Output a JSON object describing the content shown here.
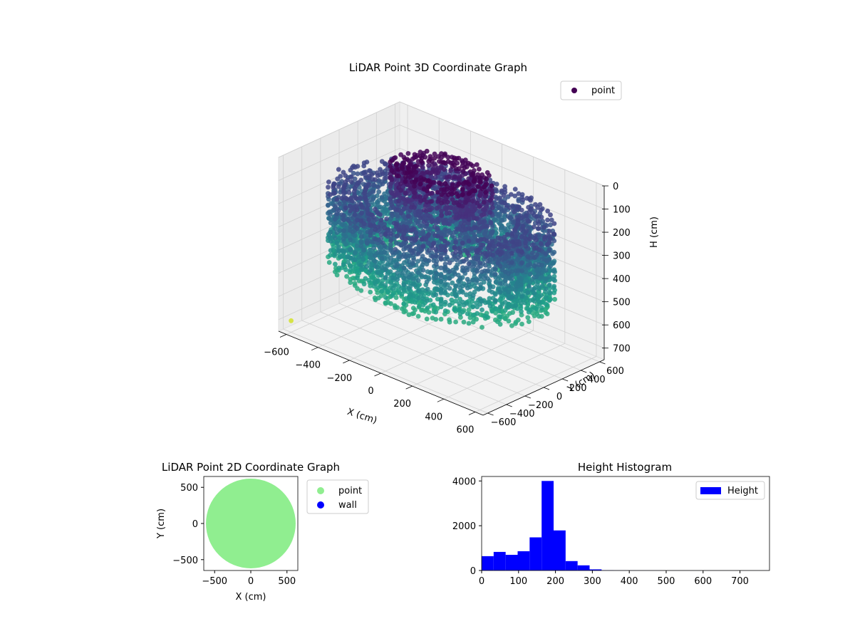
{
  "chart_data": [
    {
      "type": "scatter3d",
      "title": "LiDAR Point 3D Coordinate Graph",
      "xlabel": "X (cm)",
      "ylabel": "Y (cm)",
      "zlabel": "H (cm)",
      "xlim": [
        -650,
        650
      ],
      "ylim": [
        -650,
        650
      ],
      "zlim": [
        750,
        0
      ],
      "x_ticks": [
        -600,
        -400,
        -200,
        0,
        200,
        400,
        600
      ],
      "y_ticks": [
        -600,
        -400,
        -200,
        0,
        200,
        400,
        600
      ],
      "z_ticks": [
        0,
        100,
        200,
        300,
        400,
        500,
        600,
        700
      ],
      "colormap": "viridis",
      "legend": {
        "entries": [
          "point"
        ],
        "color": "#440154",
        "placement": "top-right"
      },
      "structure": {
        "rings": [
          {
            "radius_range": [
              420,
              620
            ],
            "height_range": [
              150,
              450
            ]
          },
          {
            "radius_range": [
              150,
              280
            ],
            "height_range": [
              0,
              250
            ]
          }
        ],
        "outlier": {
          "x": -600,
          "y": -600,
          "h": 700
        }
      },
      "grid": true
    },
    {
      "type": "scatter",
      "title": "LiDAR Point 2D Coordinate Graph",
      "xlabel": "X (cm)",
      "ylabel": "Y (cm)",
      "xlim": [
        -650,
        650
      ],
      "ylim": [
        -650,
        650
      ],
      "x_ticks": [
        -500,
        0,
        500
      ],
      "y_ticks": [
        -500,
        0,
        500
      ],
      "series": [
        {
          "name": "point",
          "color": "#90ee90",
          "shape": "disk",
          "radius": 620
        },
        {
          "name": "wall",
          "color": "#0000ff",
          "points": []
        }
      ],
      "legend": {
        "placement": "outside-right"
      },
      "grid": false
    },
    {
      "type": "histogram",
      "title": "Height Histogram",
      "xlim": [
        0,
        780
      ],
      "ylim": [
        0,
        4200
      ],
      "x_ticks": [
        0,
        100,
        200,
        300,
        400,
        500,
        600,
        700
      ],
      "y_ticks": [
        0,
        2000,
        4000
      ],
      "bin_width": 32.5,
      "bins": [
        {
          "start": 0,
          "count": 640
        },
        {
          "start": 32.5,
          "count": 830
        },
        {
          "start": 65,
          "count": 700
        },
        {
          "start": 97.5,
          "count": 860
        },
        {
          "start": 130,
          "count": 1480
        },
        {
          "start": 162.5,
          "count": 4000
        },
        {
          "start": 195,
          "count": 1790
        },
        {
          "start": 227.5,
          "count": 420
        },
        {
          "start": 260,
          "count": 230
        },
        {
          "start": 292.5,
          "count": 50
        },
        {
          "start": 325,
          "count": 10
        },
        {
          "start": 357.5,
          "count": 5
        },
        {
          "start": 390,
          "count": 3
        },
        {
          "start": 422.5,
          "count": 2
        },
        {
          "start": 455,
          "count": 2
        },
        {
          "start": 487.5,
          "count": 1
        },
        {
          "start": 520,
          "count": 1
        },
        {
          "start": 552.5,
          "count": 1
        },
        {
          "start": 585,
          "count": 1
        },
        {
          "start": 617.5,
          "count": 1
        },
        {
          "start": 650,
          "count": 1
        },
        {
          "start": 682.5,
          "count": 1
        },
        {
          "start": 715,
          "count": 1
        },
        {
          "start": 747.5,
          "count": 1
        }
      ],
      "series": [
        {
          "name": "Height",
          "color": "#0000ff"
        }
      ],
      "legend": {
        "placement": "top-right"
      }
    }
  ]
}
